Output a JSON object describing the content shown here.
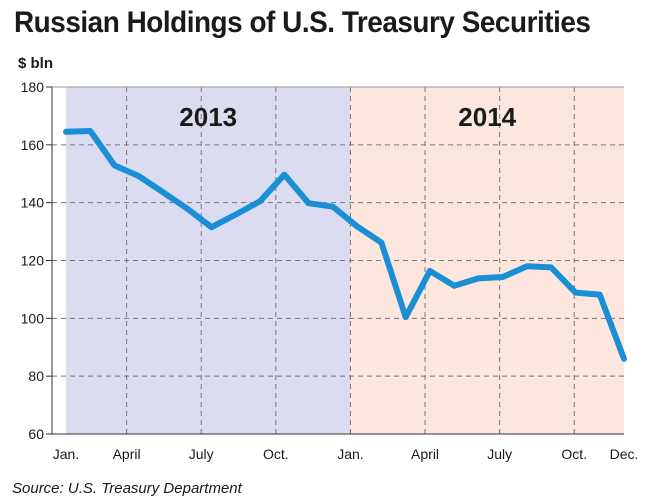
{
  "header": {
    "title": "Russian Holdings of U.S. Treasury Securities",
    "unit": "$ bln"
  },
  "footer": {
    "source": "Source: U.S. Treasury Department"
  },
  "colors": {
    "line": "#1a8fd6",
    "band_2013": "#dcdcf0",
    "band_2014": "#fde6de",
    "grid": "#777777"
  },
  "chart_data": {
    "type": "line",
    "ylabel": "$ bln",
    "ylim": [
      60,
      180
    ],
    "yticks": [
      60,
      80,
      100,
      120,
      140,
      160,
      180
    ],
    "xlim": [
      0,
      23
    ],
    "xticks": [
      {
        "x": 0,
        "label": "Jan."
      },
      {
        "x": 3,
        "label": "April"
      },
      {
        "x": 6,
        "label": "July"
      },
      {
        "x": 9,
        "label": "Oct."
      },
      {
        "x": 12,
        "label": "Jan."
      },
      {
        "x": 15,
        "label": "April"
      },
      {
        "x": 18,
        "label": "July"
      },
      {
        "x": 21,
        "label": "Oct."
      },
      {
        "x": 23,
        "label": "Dec."
      }
    ],
    "bands": [
      {
        "label": "2013",
        "start": 0,
        "end": 12
      },
      {
        "label": "2014",
        "start": 12,
        "end": 23
      }
    ],
    "grid": true,
    "series": [
      {
        "x": [
          0,
          1,
          2,
          3,
          4,
          5,
          6,
          7,
          8,
          9,
          10,
          11,
          12,
          13,
          14,
          15,
          16,
          17,
          18,
          19,
          20,
          21,
          22,
          23
        ],
        "values": [
          164.5,
          164.8,
          152.9,
          149.2,
          143.6,
          137.9,
          131.5,
          135.9,
          140.5,
          149.7,
          139.8,
          138.6,
          131.8,
          126.2,
          100.4,
          116.4,
          111.3,
          113.8,
          114.3,
          118.0,
          117.6,
          108.9,
          108.2,
          86.0
        ]
      }
    ]
  }
}
